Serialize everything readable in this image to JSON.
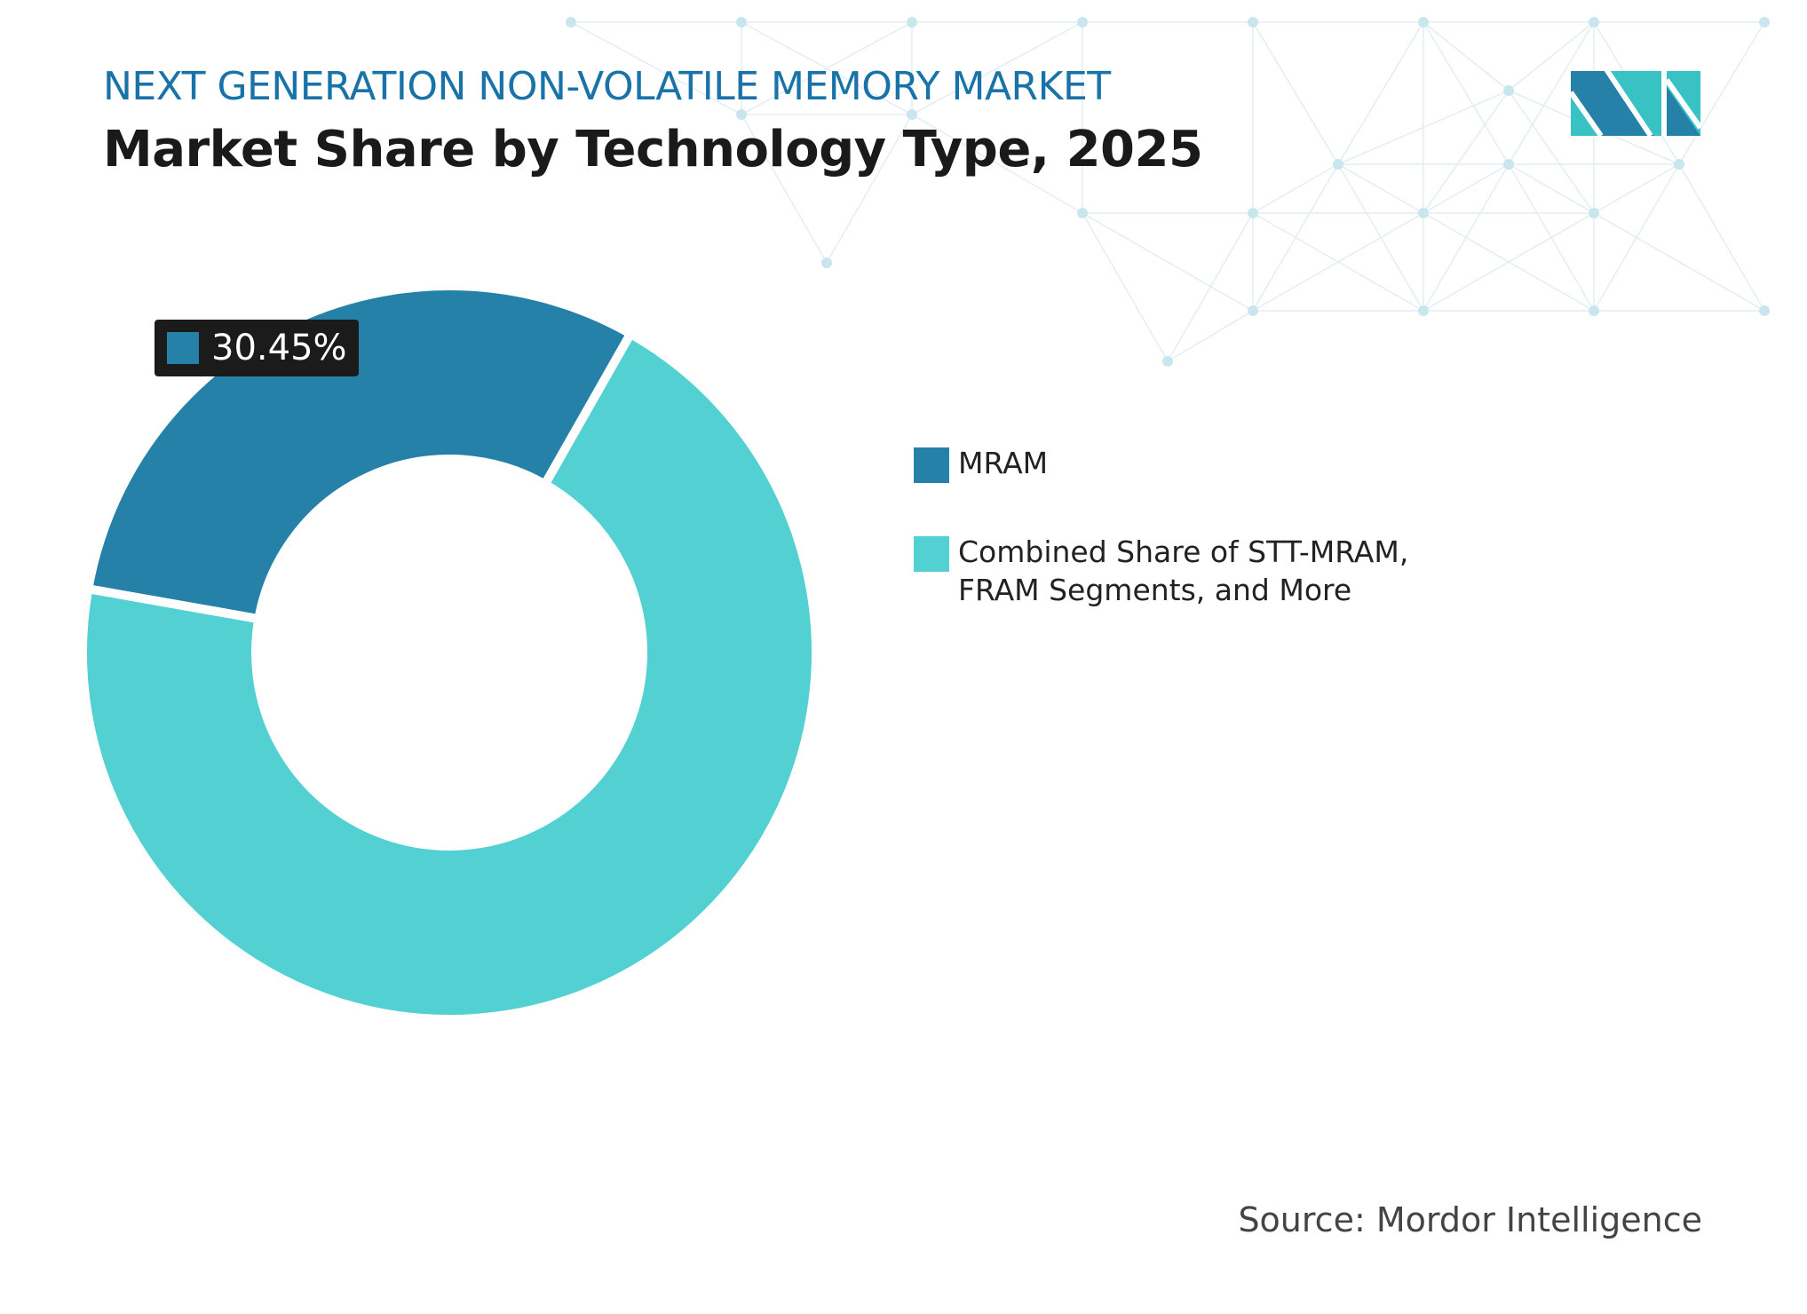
{
  "header": {
    "subtitle": "NEXT GENERATION NON-VOLATILE MEMORY MARKET",
    "title": "Market Share by Technology Type, 2025"
  },
  "colors": {
    "mram": "#2581a8",
    "other": "#52d0d2",
    "label_bg": "#1b1b1b",
    "subtitle": "#1a73a8"
  },
  "chart_data": {
    "type": "pie",
    "donut": true,
    "title": "Market Share by Technology Type, 2025",
    "categories": [
      "MRAM",
      "Combined Share of STT-MRAM, FRAM Segments, and More"
    ],
    "values": [
      30.45,
      69.55
    ],
    "data_labels": [
      "30.45%"
    ],
    "legend_placement": "right"
  },
  "legend": [
    {
      "label": "MRAM"
    },
    {
      "label": "Combined Share of STT-MRAM, FRAM Segments, and More"
    }
  ],
  "source": "Source: Mordor Intelligence",
  "logo": {
    "name": "mordor-intelligence-logo",
    "text": "MI"
  }
}
